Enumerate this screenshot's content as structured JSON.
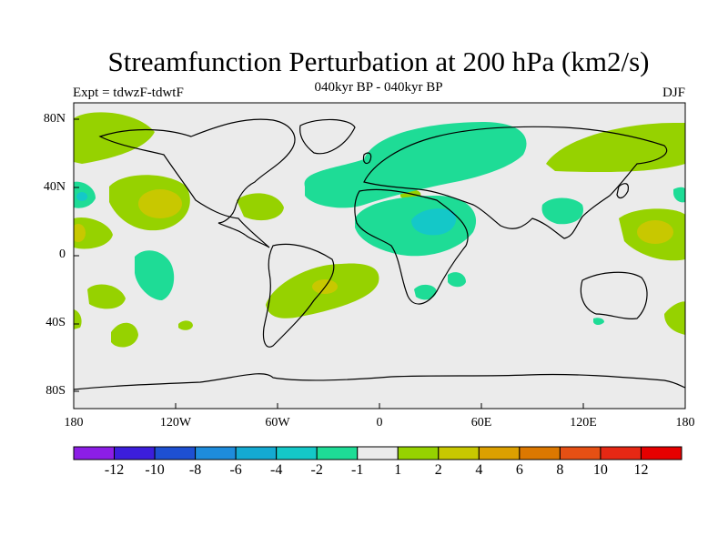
{
  "title": "Streamfunction Perturbation at 200 hPa (km2/s)",
  "subtitle_left": "Expt = tdwzF-tdwtF",
  "subtitle_center": "040kyr BP - 040kyr BP",
  "subtitle_right": "DJF",
  "lat_labels": [
    "80N",
    "40N",
    "0",
    "40S",
    "80S"
  ],
  "lon_labels": [
    "180",
    "120W",
    "60W",
    "0",
    "60E",
    "120E",
    "180"
  ],
  "colorbar": {
    "labels": [
      "-12",
      "-10",
      "-8",
      "-6",
      "-4",
      "-2",
      "-1",
      "1",
      "2",
      "4",
      "6",
      "8",
      "10",
      "12"
    ],
    "colors": [
      "#8c1ee6",
      "#3c1edc",
      "#1e50d2",
      "#1e8cdc",
      "#14aad2",
      "#14c8c8",
      "#1edc96",
      "#ebebeb",
      "#96d200",
      "#c8c800",
      "#dca000",
      "#dc7800",
      "#e65014",
      "#e62814",
      "#e60000"
    ]
  },
  "map": {
    "background": "#ebebeb"
  }
}
